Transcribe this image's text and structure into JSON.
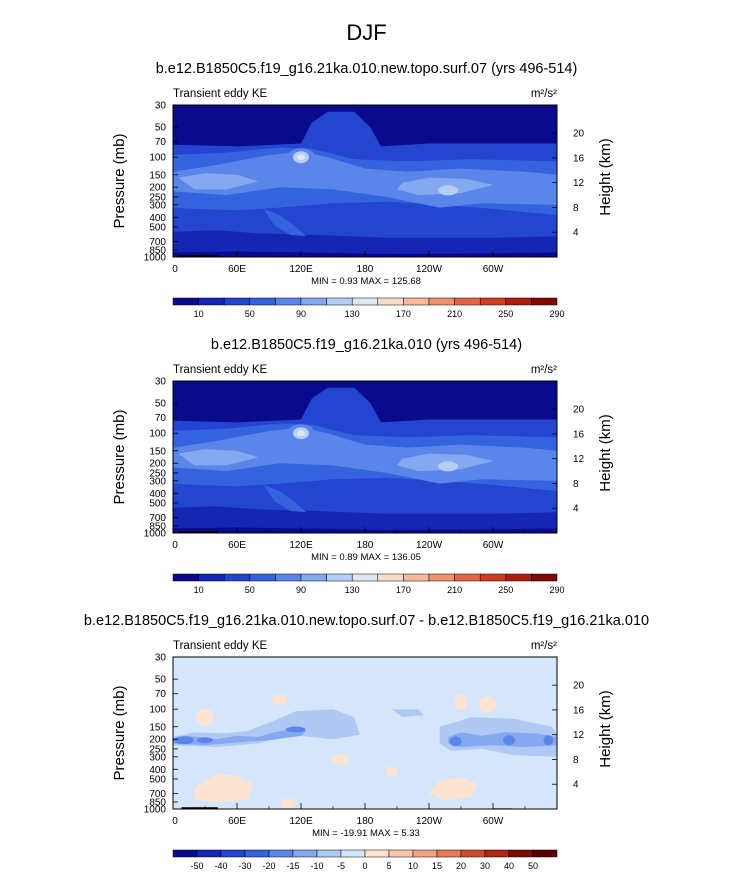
{
  "figure": {
    "title": "DJF"
  },
  "panels": [
    {
      "title": "b.e12.B1850C5.f19_g16.21ka.010.new.topo.surf.07 (yrs 496-514)",
      "left_label": "Transient eddy KE",
      "units": "m²/s²",
      "minmax": "MIN =   0.93  MAX = 125.68",
      "colorbar_labels": [
        "10",
        "50",
        "90",
        "130",
        "170",
        "210",
        "250",
        "290"
      ]
    },
    {
      "title": "b.e12.B1850C5.f19_g16.21ka.010 (yrs 496-514)",
      "left_label": "Transient eddy KE",
      "units": "m²/s²",
      "minmax": "MIN =   0.89  MAX = 136.05",
      "colorbar_labels": [
        "10",
        "50",
        "90",
        "130",
        "170",
        "210",
        "250",
        "290"
      ]
    },
    {
      "title": "b.e12.B1850C5.f19_g16.21ka.010.new.topo.surf.07 - b.e12.B1850C5.f19_g16.21ka.010",
      "left_label": "Transient eddy KE",
      "units": "m²/s²",
      "minmax": "MIN = -19.91  MAX =   5.33",
      "colorbar_labels": [
        "-50",
        "-40",
        "-30",
        "-20",
        "-15",
        "-10",
        "-5",
        "0",
        "5",
        "10",
        "15",
        "20",
        "30",
        "40",
        "50"
      ]
    }
  ],
  "axes": {
    "ylabel": "Pressure (mb)",
    "y2label": "Height (km)",
    "pressure_ticks": [
      "30",
      "50",
      "70",
      "100",
      "150",
      "200",
      "250",
      "300",
      "400",
      "500",
      "700",
      "850",
      "1000"
    ],
    "height_ticks": [
      "20",
      "16",
      "12",
      "8",
      "4"
    ],
    "x_ticks": [
      "0",
      "60E",
      "120E",
      "180",
      "120W",
      "60W"
    ]
  },
  "colors": {
    "abs_palette": [
      "#0a0a8c",
      "#1626b4",
      "#2345d0",
      "#3563e0",
      "#5a86ea",
      "#86a8f0",
      "#b6cef6",
      "#dfe6f4",
      "#f8dccd",
      "#f6b89e",
      "#ef906f",
      "#e46545",
      "#cf3c20",
      "#ad1d0c",
      "#7d0a04"
    ],
    "diff_palette": [
      "#0a0a8c",
      "#1626b4",
      "#2345d0",
      "#3563e0",
      "#5a86ea",
      "#86a8f0",
      "#b0c8f4",
      "#d6e6fa",
      "#fde4d2",
      "#f8c8ae",
      "#f2a282",
      "#e6785a",
      "#d04a2e",
      "#b02414",
      "#7d0a04",
      "#5a0000"
    ],
    "diff_background": "#d6e6fa",
    "positive_tint": "#fde4d2"
  },
  "chart_data": [
    {
      "type": "heatmap",
      "title": "b.e12.B1850C5.f19_g16.21ka.010.new.topo.surf.07 (yrs 496-514)",
      "variable": "Transient eddy KE",
      "units": "m²/s²",
      "xlabel": "",
      "ylabel": "Pressure (mb)",
      "y2label": "Height (km)",
      "x_range": [
        0,
        360
      ],
      "y_range_mb": [
        1000,
        30
      ],
      "y_scale": "log",
      "min": 0.93,
      "max": 125.68,
      "contour_levels": [
        10,
        30,
        50,
        70,
        90,
        110,
        130,
        150,
        170,
        190,
        210,
        230,
        250,
        270,
        290
      ],
      "features": [
        {
          "lon": 120,
          "p_mb": 100,
          "value": 125
        },
        {
          "lon": 20,
          "p_mb": 170,
          "value": 70
        },
        {
          "lon": 255,
          "p_mb": 220,
          "value": 80
        }
      ]
    },
    {
      "type": "heatmap",
      "title": "b.e12.B1850C5.f19_g16.21ka.010 (yrs 496-514)",
      "variable": "Transient eddy KE",
      "units": "m²/s²",
      "xlabel": "",
      "ylabel": "Pressure (mb)",
      "y2label": "Height (km)",
      "x_range": [
        0,
        360
      ],
      "y_range_mb": [
        1000,
        30
      ],
      "y_scale": "log",
      "min": 0.89,
      "max": 136.05,
      "contour_levels": [
        10,
        30,
        50,
        70,
        90,
        110,
        130,
        150,
        170,
        190,
        210,
        230,
        250,
        270,
        290
      ],
      "features": [
        {
          "lon": 120,
          "p_mb": 100,
          "value": 135
        },
        {
          "lon": 20,
          "p_mb": 170,
          "value": 75
        },
        {
          "lon": 260,
          "p_mb": 200,
          "value": 85
        }
      ]
    },
    {
      "type": "heatmap",
      "title": "b.e12.B1850C5.f19_g16.21ka.010.new.topo.surf.07 - b.e12.B1850C5.f19_g16.21ka.010",
      "variable": "Transient eddy KE",
      "units": "m²/s²",
      "xlabel": "",
      "ylabel": "Pressure (mb)",
      "y2label": "Height (km)",
      "x_range": [
        0,
        360
      ],
      "y_range_mb": [
        1000,
        30
      ],
      "y_scale": "log",
      "min": -19.91,
      "max": 5.33,
      "contour_levels": [
        -50,
        -40,
        -30,
        -20,
        -15,
        -10,
        -5,
        0,
        5,
        10,
        15,
        20,
        30,
        40,
        50
      ],
      "features": [
        {
          "lon": 10,
          "p_mb": 200,
          "value": -15
        },
        {
          "lon": 120,
          "p_mb": 125,
          "value": -15
        },
        {
          "lon": 315,
          "p_mb": 200,
          "value": -15
        }
      ]
    }
  ]
}
